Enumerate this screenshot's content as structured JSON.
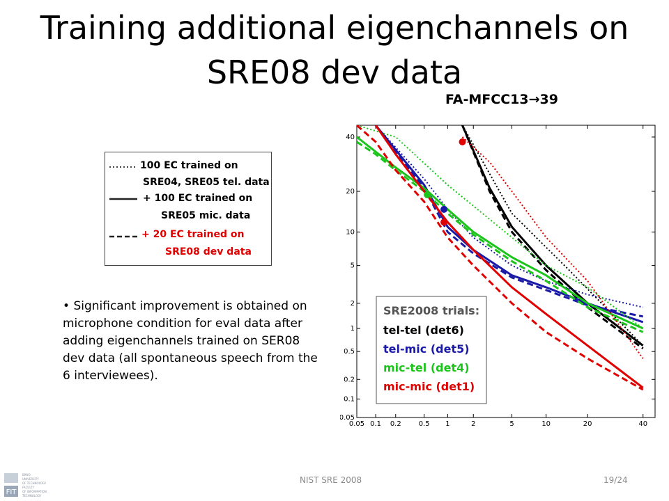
{
  "slide": {
    "title_line1": "Training additional eigenchannels on",
    "title_line2": "SRE08 dev data",
    "subtitle_prefix": "FA-MFCC13",
    "subtitle_arrow": "→",
    "subtitle_suffix": "39",
    "footer_center": "NIST SRE 2008",
    "footer_page": "19/24",
    "logo_text_lines": [
      "BRNO",
      "UNIVERSITY",
      "OF TECHNOLOGY",
      "FACULTY",
      "OF INFORMATION",
      "TECHNOLOGY"
    ],
    "logo_mark": "FIT"
  },
  "legend": {
    "row1_line1": "100 EC trained on",
    "row1_line2": "SRE04, SRE05 tel. data",
    "row2_line1": "+ 100 EC trained on",
    "row2_line2": "SRE05 mic. data",
    "row3_line1": "+   20 EC trained on",
    "row3_line2": "SRE08 dev data",
    "row3_color": "#e00000"
  },
  "bullet": {
    "symbol": "•",
    "text": "Significant improvement is obtained on microphone condition for eval data after adding eigenchannels trained on SER08 dev data (all spontaneous speech from the 6 interviewees)."
  },
  "chart_data": {
    "type": "line",
    "title": "FA-MFCC13→39",
    "xlabel": "",
    "ylabel": "",
    "scale": "normal-deviate (DET)",
    "xlim": [
      0.05,
      45
    ],
    "ylim": [
      0.05,
      45
    ],
    "x_ticks": [
      "0.05",
      "0.1",
      "0.2",
      "0.5",
      "1",
      "2",
      "5",
      "10",
      "20",
      "40"
    ],
    "y_ticks": [
      "0.05",
      "0.1",
      "0.2",
      "0.5",
      "1",
      "2",
      "5",
      "10",
      "20",
      "40"
    ],
    "grid": false,
    "inner_legend": {
      "title": "SRE2008 trials:",
      "entries": [
        {
          "label": "tel-tel (det6)",
          "color": "#000000"
        },
        {
          "label": "tel-mic (det5)",
          "color": "#1a1aa6"
        },
        {
          "label": "mic-tel (det4)",
          "color": "#1cc41c"
        },
        {
          "label": "mic-mic (det1)",
          "color": "#e00000"
        }
      ],
      "placement": "bottom-left"
    },
    "series": [
      {
        "name": "tel-tel (det6)",
        "variant": "dotted",
        "color": "#000000",
        "points": [
          [
            1.5,
            45
          ],
          [
            5,
            14
          ],
          [
            15,
            4.5
          ],
          [
            40,
            0.6
          ]
        ]
      },
      {
        "name": "tel-tel (det6)",
        "variant": "solid",
        "color": "#000000",
        "points": [
          [
            1.5,
            45
          ],
          [
            3,
            21
          ],
          [
            5,
            11
          ],
          [
            10,
            5
          ],
          [
            20,
            2
          ],
          [
            40,
            0.6
          ]
        ]
      },
      {
        "name": "tel-tel (det6)",
        "variant": "dashed",
        "color": "#000000",
        "points": [
          [
            1.5,
            45
          ],
          [
            3,
            20
          ],
          [
            5,
            10
          ],
          [
            10,
            4.5
          ],
          [
            20,
            1.8
          ],
          [
            40,
            0.55
          ]
        ]
      },
      {
        "name": "tel-mic (det5)",
        "variant": "dotted",
        "color": "#1a1aa6",
        "points": [
          [
            0.1,
            45
          ],
          [
            0.5,
            24
          ],
          [
            1,
            15
          ],
          [
            2,
            9
          ],
          [
            5,
            5
          ],
          [
            10,
            3.5
          ],
          [
            20,
            2.5
          ],
          [
            40,
            1.8
          ]
        ]
      },
      {
        "name": "tel-mic (det5)",
        "variant": "solid",
        "color": "#1a1aa6",
        "points": [
          [
            0.1,
            45
          ],
          [
            0.5,
            22
          ],
          [
            1,
            11
          ],
          [
            2,
            7
          ],
          [
            5,
            4
          ],
          [
            10,
            3
          ],
          [
            20,
            2
          ],
          [
            40,
            1.2
          ]
        ]
      },
      {
        "name": "tel-mic (det5)",
        "variant": "dashed",
        "color": "#1a1aa6",
        "points": [
          [
            0.1,
            45
          ],
          [
            0.5,
            21
          ],
          [
            1,
            10
          ],
          [
            2,
            6.5
          ],
          [
            5,
            3.8
          ],
          [
            10,
            2.8
          ],
          [
            20,
            1.9
          ],
          [
            40,
            1.4
          ]
        ]
      },
      {
        "name": "mic-tel (det4)",
        "variant": "dotted",
        "color": "#1cc41c",
        "points": [
          [
            0.05,
            45
          ],
          [
            0.2,
            40
          ],
          [
            1,
            22
          ],
          [
            5,
            9
          ],
          [
            10,
            5
          ],
          [
            20,
            3
          ],
          [
            40,
            1
          ]
        ]
      },
      {
        "name": "mic-tel (det4)",
        "variant": "solid",
        "color": "#1cc41c",
        "points": [
          [
            0.05,
            40
          ],
          [
            0.1,
            34
          ],
          [
            0.2,
            28
          ],
          [
            0.5,
            21
          ],
          [
            1,
            15
          ],
          [
            2,
            10
          ],
          [
            5,
            6
          ],
          [
            10,
            4
          ],
          [
            20,
            2
          ],
          [
            40,
            1
          ]
        ]
      },
      {
        "name": "mic-tel (det4)",
        "variant": "dashed",
        "color": "#1cc41c",
        "points": [
          [
            0.05,
            38
          ],
          [
            0.1,
            33
          ],
          [
            0.2,
            27
          ],
          [
            0.5,
            20
          ],
          [
            1,
            14
          ],
          [
            2,
            9.5
          ],
          [
            5,
            5.5
          ],
          [
            10,
            3.5
          ],
          [
            20,
            1.8
          ],
          [
            40,
            0.9
          ]
        ]
      },
      {
        "name": "mic-mic (det1)",
        "variant": "dotted",
        "color": "#e00000",
        "points": [
          [
            1.5,
            40
          ],
          [
            3,
            30
          ],
          [
            5,
            20
          ],
          [
            10,
            9
          ],
          [
            20,
            3.5
          ],
          [
            40,
            0.4
          ]
        ]
      },
      {
        "name": "mic-mic (det1)",
        "variant": "solid",
        "color": "#e00000",
        "points": [
          [
            0.1,
            45
          ],
          [
            0.2,
            33
          ],
          [
            0.5,
            20
          ],
          [
            1,
            12
          ],
          [
            2,
            7
          ],
          [
            5,
            3
          ],
          [
            10,
            1.5
          ],
          [
            20,
            0.6
          ],
          [
            40,
            0.15
          ]
        ]
      },
      {
        "name": "mic-mic (det1)",
        "variant": "dashed",
        "color": "#e00000",
        "points": [
          [
            0.05,
            45
          ],
          [
            0.1,
            38
          ],
          [
            0.2,
            27
          ],
          [
            0.5,
            17
          ],
          [
            1,
            9
          ],
          [
            2,
            5
          ],
          [
            5,
            2
          ],
          [
            10,
            0.9
          ],
          [
            20,
            0.4
          ],
          [
            40,
            0.14
          ]
        ]
      }
    ],
    "markers": [
      {
        "x": 1.5,
        "y": 38,
        "color": "#e00000"
      },
      {
        "x": 0.55,
        "y": 19,
        "color": "#1cc41c"
      },
      {
        "x": 0.9,
        "y": 15,
        "color": "#1a1aa6"
      },
      {
        "x": 0.9,
        "y": 12,
        "color": "#e00000"
      }
    ]
  }
}
